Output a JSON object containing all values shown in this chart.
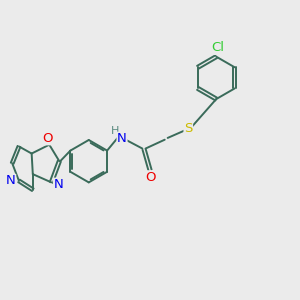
{
  "bg_color": "#ebebeb",
  "bond_color": "#3a6b5a",
  "bond_width": 1.4,
  "dbo": 0.055,
  "atom_colors": {
    "Cl": "#33cc33",
    "S": "#ccbb00",
    "O": "#ee0000",
    "N": "#0000ee",
    "H": "#5a8a80",
    "C": "#3a6b5a"
  },
  "font_size": 8.5,
  "fig_size": [
    3.0,
    3.0
  ],
  "dpi": 100
}
